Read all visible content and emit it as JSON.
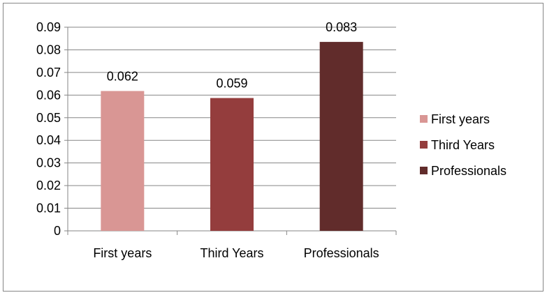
{
  "chart_data": {
    "type": "bar",
    "categories": [
      "First years",
      "Third Years",
      "Professionals"
    ],
    "values": [
      0.0618,
      0.0587,
      0.0835
    ],
    "data_labels": [
      "0.062",
      "0.059",
      "0.083"
    ],
    "colors": [
      "#d99694",
      "#943d3d",
      "#612c2b"
    ],
    "ylim": [
      0,
      0.09
    ],
    "yticks": [
      "0",
      "0.01",
      "0.02",
      "0.03",
      "0.04",
      "0.05",
      "0.06",
      "0.07",
      "0.08",
      "0.09"
    ],
    "grid": true,
    "legend_position": "right",
    "legend": [
      "First years",
      "Third Years",
      "Professionals"
    ],
    "title": "",
    "xlabel": "",
    "ylabel": ""
  }
}
